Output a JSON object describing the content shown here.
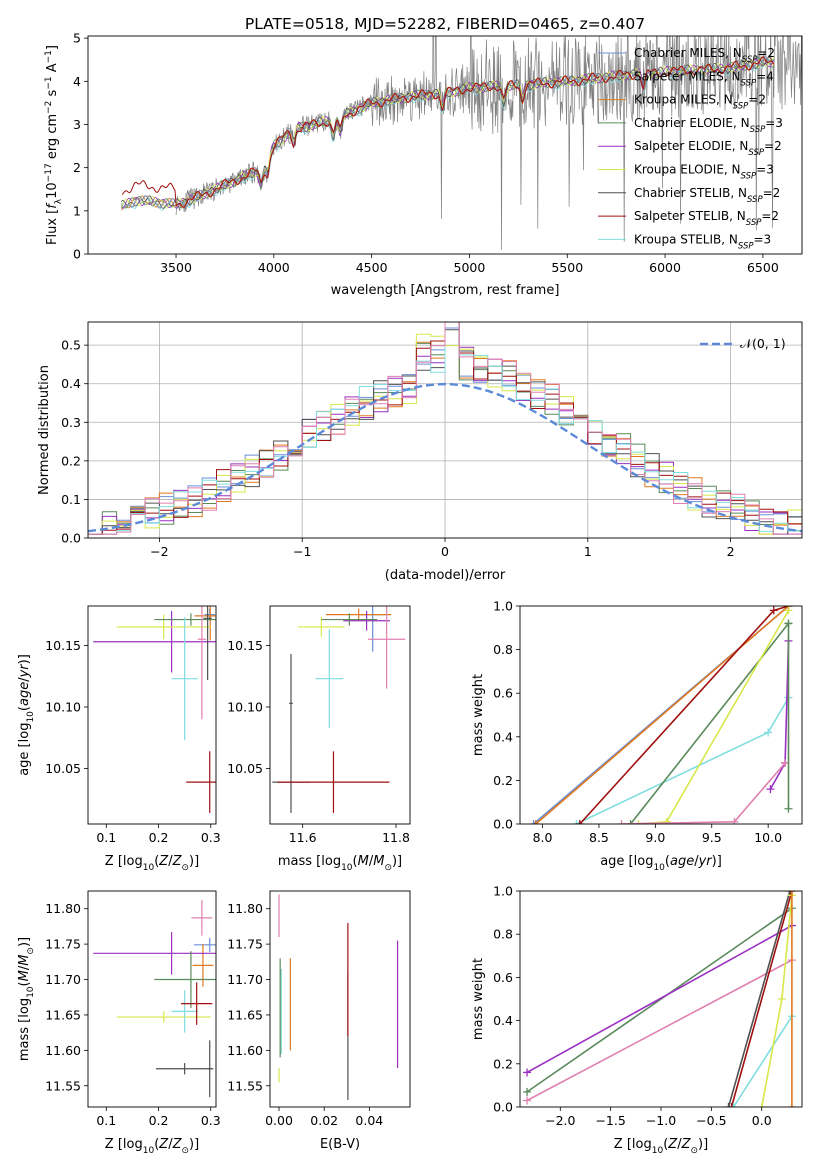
{
  "figure_title": "PLATE=0518, MJD=52282, FIBERID=0465, z=0.407",
  "colors": {
    "chabrier_miles": "#6a8fd8",
    "salpeter_miles": "#a0a0a0",
    "kroupa_miles": "#e07a20",
    "chabrier_elodie": "#5a8a5a",
    "salpeter_elodie": "#9a30c0",
    "kroupa_elodie": "#d8e84a",
    "chabrier_stelib": "#505050",
    "salpeter_stelib": "#a01010",
    "kroupa_stelib": "#80dde0",
    "pink": "#e080b0",
    "normal": "#5b8bd8",
    "data": "#808080"
  },
  "chart_data": [
    {
      "type": "line",
      "id": "spectrum",
      "xlabel": "wavelength [Angstrom, rest frame]",
      "ylabel": "Flux [f_λ10^-17 erg cm^-2 s^-1 A^-1]",
      "xlim": [
        3050,
        6700
      ],
      "ylim": [
        0,
        5.05
      ],
      "xticks": [
        3500,
        4000,
        4500,
        5000,
        5500,
        6000,
        6500
      ],
      "yticks": [
        0,
        1,
        2,
        3,
        4,
        5
      ],
      "grid": false,
      "legend_position": "upper-right",
      "legend": [
        {
          "key": "chabrier_miles",
          "label": "Chabrier MILES, N",
          "sub": "SSP",
          "suffix": "=2"
        },
        {
          "key": "salpeter_miles",
          "label": "Salpeter MILES, N",
          "sub": "SSP",
          "suffix": "=4"
        },
        {
          "key": "kroupa_miles",
          "label": "Kroupa MILES, N",
          "sub": "SSP",
          "suffix": "=2"
        },
        {
          "key": "chabrier_elodie",
          "label": "Chabrier ELODIE, N",
          "sub": "SSP",
          "suffix": "=3"
        },
        {
          "key": "salpeter_elodie",
          "label": "Salpeter ELODIE, N",
          "sub": "SSP",
          "suffix": "=2"
        },
        {
          "key": "kroupa_elodie",
          "label": "Kroupa ELODIE, N",
          "sub": "SSP",
          "suffix": "=3"
        },
        {
          "key": "chabrier_stelib",
          "label": "Chabrier STELIB, N",
          "sub": "SSP",
          "suffix": "=2"
        },
        {
          "key": "salpeter_stelib",
          "label": "Salpeter STELIB, N",
          "sub": "SSP",
          "suffix": "=2"
        },
        {
          "key": "kroupa_stelib",
          "label": "Kroupa STELIB, N",
          "sub": "SSP",
          "suffix": "=3"
        }
      ],
      "continuum_knots": [
        [
          3220,
          1.1
        ],
        [
          3300,
          1.25
        ],
        [
          3500,
          1.15
        ],
        [
          3600,
          1.3
        ],
        [
          3700,
          1.5
        ],
        [
          3850,
          1.8
        ],
        [
          3950,
          2.0
        ],
        [
          4000,
          2.5
        ],
        [
          4100,
          2.9
        ],
        [
          4300,
          3.1
        ],
        [
          4500,
          3.5
        ],
        [
          4700,
          3.65
        ],
        [
          4900,
          3.75
        ],
        [
          5000,
          3.85
        ],
        [
          5200,
          3.9
        ],
        [
          5500,
          4.0
        ],
        [
          5800,
          4.15
        ],
        [
          6100,
          4.25
        ],
        [
          6300,
          4.3
        ],
        [
          6520,
          4.45
        ]
      ]
    },
    {
      "type": "histogram",
      "id": "residuals",
      "xlabel": "(data-model)/error",
      "ylabel": "Normed distribution",
      "xlim": [
        -2.5,
        2.5
      ],
      "ylim": [
        0,
        0.56
      ],
      "xticks": [
        -2,
        -1,
        0,
        1,
        2
      ],
      "yticks": [
        0.0,
        0.1,
        0.2,
        0.3,
        0.4,
        0.5
      ],
      "grid": true,
      "legend_position": "upper-right",
      "legend_label": "𝒩(0, 1)",
      "bin_width": 0.1
    },
    {
      "type": "errorbar",
      "id": "age_vs_Z",
      "xlabel": "Z [log10(Z/Z⊙)]",
      "ylabel": "age  [log10(age/yr)]",
      "xlim": [
        0.065,
        0.31
      ],
      "ylim": [
        10.005,
        10.182
      ],
      "xticks": [
        0.1,
        0.2,
        0.3
      ],
      "yticks": [
        10.05,
        10.1,
        10.15
      ],
      "points": [
        {
          "c": "chabrier_miles",
          "x": 0.298,
          "y": 10.175,
          "xe": 0.01,
          "ye": 0.005
        },
        {
          "c": "kroupa_miles",
          "x": 0.299,
          "y": 10.174,
          "xe": 0.03,
          "ye": 0.02
        },
        {
          "c": "salpeter_elodie",
          "x": 0.225,
          "y": 10.153,
          "xe": 0.15,
          "ye": 0.025
        },
        {
          "c": "kroupa_elodie",
          "x": 0.21,
          "y": 10.165,
          "xe": 0.09,
          "ye": 0.01
        },
        {
          "c": "chabrier_elodie",
          "x": 0.262,
          "y": 10.171,
          "xe": 0.07,
          "ye": 0.005
        },
        {
          "c": "chabrier_stelib",
          "x": 0.294,
          "y": 10.172,
          "xe": 0.008,
          "ye": 0.05
        },
        {
          "c": "kroupa_stelib",
          "x": 0.25,
          "y": 10.123,
          "xe": 0.025,
          "ye": 0.05
        },
        {
          "c": "salpeter_stelib",
          "x": 0.298,
          "y": 10.039,
          "xe": 0.045,
          "ye": 0.025
        },
        {
          "c": "pink",
          "x": 0.283,
          "y": 10.155,
          "xe": 0.008,
          "ye": 0.065
        }
      ]
    },
    {
      "type": "errorbar",
      "id": "age_vs_mass",
      "xlabel": "mass [log10(M/M⊙)]",
      "ylabel": "",
      "xlim": [
        11.53,
        11.83
      ],
      "ylim": [
        10.005,
        10.182
      ],
      "xticks": [
        11.6,
        11.8
      ],
      "yticks": [
        10.05,
        10.1,
        10.15
      ],
      "points": [
        {
          "c": "chabrier_miles",
          "x": 11.75,
          "y": 10.175,
          "xe": 0.03,
          "ye": 0.03
        },
        {
          "c": "kroupa_miles",
          "x": 11.72,
          "y": 10.175,
          "xe": 0.07,
          "ye": 0.005
        },
        {
          "c": "salpeter_elodie",
          "x": 11.737,
          "y": 10.17,
          "xe": 0.05,
          "ye": 0.008
        },
        {
          "c": "kroupa_elodie",
          "x": 11.64,
          "y": 10.165,
          "xe": 0.05,
          "ye": 0.008
        },
        {
          "c": "chabrier_elodie",
          "x": 11.7,
          "y": 10.171,
          "xe": 0.06,
          "ye": 0.005
        },
        {
          "c": "kroupa_stelib",
          "x": 11.657,
          "y": 10.123,
          "xe": 0.03,
          "ye": 0.04
        },
        {
          "c": "chabrier_stelib",
          "x": 11.575,
          "y": 10.103,
          "xe": 0.004,
          "ye": 0.04
        },
        {
          "c": "chabrier_stelib",
          "x": 11.575,
          "y": 10.039,
          "xe": 0.04,
          "ye": 0.025
        },
        {
          "c": "salpeter_stelib",
          "x": 11.666,
          "y": 10.039,
          "xe": 0.12,
          "ye": 0.025
        },
        {
          "c": "pink",
          "x": 11.78,
          "y": 10.155,
          "xe": 0.04,
          "ye": 0.04
        }
      ]
    },
    {
      "type": "line",
      "id": "weight_vs_age",
      "xlabel": "age  [log10(age/yr)]",
      "ylabel": "mass weight",
      "xlim": [
        7.8,
        10.3
      ],
      "ylim": [
        0,
        1.0
      ],
      "xticks": [
        8.0,
        8.5,
        9.0,
        9.5,
        10.0
      ],
      "yticks": [
        0.0,
        0.2,
        0.4,
        0.6,
        0.8,
        1.0
      ],
      "series": [
        {
          "c": "chabrier_miles",
          "x": [
            7.92,
            10.18
          ],
          "y": [
            0.0,
            1.0
          ]
        },
        {
          "c": "kroupa_miles",
          "x": [
            7.94,
            10.18
          ],
          "y": [
            0.0,
            1.0
          ]
        },
        {
          "c": "kroupa_stelib",
          "x": [
            8.3,
            10.0,
            10.18
          ],
          "y": [
            0.0,
            0.42,
            0.58
          ]
        },
        {
          "c": "salpeter_stelib",
          "x": [
            8.33,
            10.05,
            10.18
          ],
          "y": [
            0.0,
            0.98,
            1.0
          ]
        },
        {
          "c": "chabrier_elodie",
          "x": [
            8.78,
            10.18
          ],
          "y": [
            0.0,
            0.92
          ]
        },
        {
          "c": "kroupa_elodie",
          "x": [
            8.85,
            9.1,
            10.18
          ],
          "y": [
            0.0,
            0.01,
            0.98
          ]
        },
        {
          "c": "salpeter_elodie",
          "x": [
            10.02,
            10.15,
            10.18
          ],
          "y": [
            0.16,
            0.28,
            0.84
          ]
        },
        {
          "c": "pink",
          "x": [
            8.7,
            9.7,
            10.15
          ],
          "y": [
            0.0,
            0.01,
            0.28
          ]
        },
        {
          "c": "chabrier_elodie",
          "x": [
            10.18,
            10.18
          ],
          "y": [
            0.07,
            0.92
          ]
        }
      ]
    },
    {
      "type": "errorbar",
      "id": "mass_vs_Z",
      "xlabel": "Z [log10(Z/Z⊙)]",
      "ylabel": "mass [log10(M/M⊙)]",
      "xlim": [
        0.065,
        0.31
      ],
      "ylim": [
        11.52,
        11.825
      ],
      "xticks": [
        0.1,
        0.2,
        0.3
      ],
      "yticks": [
        11.55,
        11.6,
        11.65,
        11.7,
        11.75,
        11.8
      ],
      "points": [
        {
          "c": "chabrier_miles",
          "x": 0.298,
          "y": 11.749,
          "xe": 0.03,
          "ye": 0.01
        },
        {
          "c": "kroupa_miles",
          "x": 0.285,
          "y": 11.72,
          "xe": 0.02,
          "ye": 0.03
        },
        {
          "c": "salpeter_elodie",
          "x": 0.225,
          "y": 11.737,
          "xe": 0.15,
          "ye": 0.03
        },
        {
          "c": "kroupa_elodie",
          "x": 0.21,
          "y": 11.647,
          "xe": 0.09,
          "ye": 0.008
        },
        {
          "c": "chabrier_elodie",
          "x": 0.262,
          "y": 11.7,
          "xe": 0.07,
          "ye": 0.04
        },
        {
          "c": "kroupa_stelib",
          "x": 0.25,
          "y": 11.655,
          "xe": 0.025,
          "ye": 0.03
        },
        {
          "c": "chabrier_stelib",
          "x": 0.25,
          "y": 11.574,
          "xe": 0.055,
          "ye": 0.008
        },
        {
          "c": "chabrier_stelib",
          "x": 0.298,
          "y": 11.574,
          "xe": 0.004,
          "ye": 0.04
        },
        {
          "c": "salpeter_stelib",
          "x": 0.273,
          "y": 11.666,
          "xe": 0.03,
          "ye": 0.03
        },
        {
          "c": "pink",
          "x": 0.283,
          "y": 11.787,
          "xe": 0.02,
          "ye": 0.025
        }
      ]
    },
    {
      "type": "errorbar",
      "id": "mass_vs_ebv",
      "xlabel": "E(B-V)",
      "ylabel": "",
      "xlim": [
        -0.004,
        0.058
      ],
      "ylim": [
        11.52,
        11.825
      ],
      "xticks": [
        0.0,
        0.02,
        0.04
      ],
      "yticks": [
        11.55,
        11.6,
        11.65,
        11.7,
        11.75,
        11.8
      ],
      "points": [
        {
          "c": "kroupa_miles",
          "x": 0.005,
          "y": 11.665,
          "xe": 0.0,
          "ye": 0.065
        },
        {
          "c": "kroupa_stelib",
          "x": 0.001,
          "y": 11.655,
          "xe": 0.0,
          "ye": 0.06
        },
        {
          "c": "chabrier_elodie",
          "x": 0.0005,
          "y": 11.66,
          "xe": 0.0,
          "ye": 0.07
        },
        {
          "c": "kroupa_elodie",
          "x": 0.0,
          "y": 11.565,
          "xe": 0.0,
          "ye": 0.01
        },
        {
          "c": "pink",
          "x": 0.0,
          "y": 11.79,
          "xe": 0.0,
          "ye": 0.03
        },
        {
          "c": "chabrier_stelib",
          "x": 0.0305,
          "y": 11.62,
          "xe": 0.0,
          "ye": 0.09
        },
        {
          "c": "salpeter_stelib",
          "x": 0.0305,
          "y": 11.7,
          "xe": 0.0,
          "ye": 0.08
        },
        {
          "c": "salpeter_elodie",
          "x": 0.0525,
          "y": 11.665,
          "xe": 0.0,
          "ye": 0.09
        }
      ]
    },
    {
      "type": "line",
      "id": "weight_vs_Z",
      "xlabel": "Z [log10(Z/Z⊙)]",
      "ylabel": "mass weight",
      "xlim": [
        -2.4,
        0.4
      ],
      "ylim": [
        0,
        1.0
      ],
      "xticks": [
        -2.0,
        -1.5,
        -1.0,
        -0.5,
        0.0
      ],
      "yticks": [
        0.0,
        0.2,
        0.4,
        0.6,
        0.8,
        1.0
      ],
      "series": [
        {
          "c": "chabrier_elodie",
          "x": [
            -2.33,
            0.3
          ],
          "y": [
            0.07,
            0.92
          ]
        },
        {
          "c": "salpeter_elodie",
          "x": [
            -2.33,
            0.3
          ],
          "y": [
            0.16,
            0.84
          ]
        },
        {
          "c": "pink",
          "x": [
            -2.33,
            0.3
          ],
          "y": [
            0.03,
            0.68
          ]
        },
        {
          "c": "chabrier_stelib",
          "x": [
            -0.33,
            0.28
          ],
          "y": [
            0.0,
            1.0
          ]
        },
        {
          "c": "salpeter_stelib",
          "x": [
            -0.3,
            0.3
          ],
          "y": [
            0.0,
            1.0
          ]
        },
        {
          "c": "kroupa_stelib",
          "x": [
            -0.28,
            0.3
          ],
          "y": [
            0.0,
            0.42
          ]
        },
        {
          "c": "kroupa_elodie",
          "x": [
            0.0,
            0.2,
            0.3
          ],
          "y": [
            0.0,
            0.5,
            0.98
          ]
        },
        {
          "c": "kroupa_miles",
          "x": [
            0.3,
            0.3
          ],
          "y": [
            0.0,
            1.0
          ]
        }
      ]
    }
  ]
}
